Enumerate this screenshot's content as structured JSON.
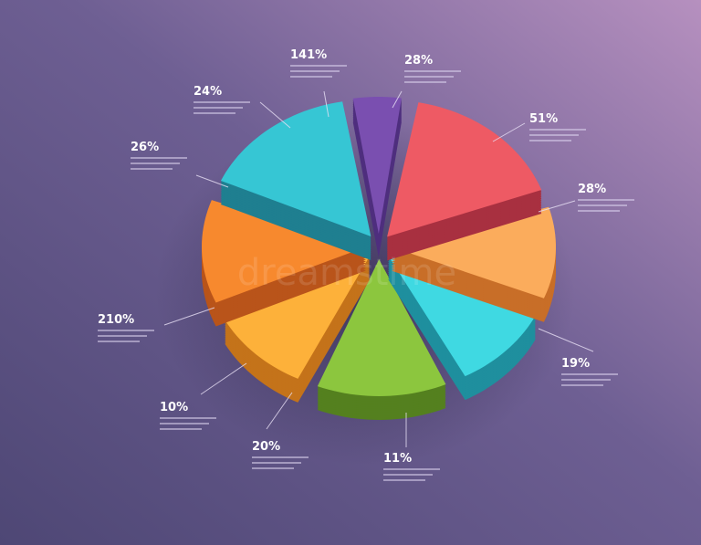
{
  "labels": [
    "141%",
    "28%",
    "51%",
    "28%",
    "19%",
    "11%",
    "20%",
    "10%",
    "210%",
    "26%",
    "24%"
  ],
  "watermark": "dreamstime"
}
